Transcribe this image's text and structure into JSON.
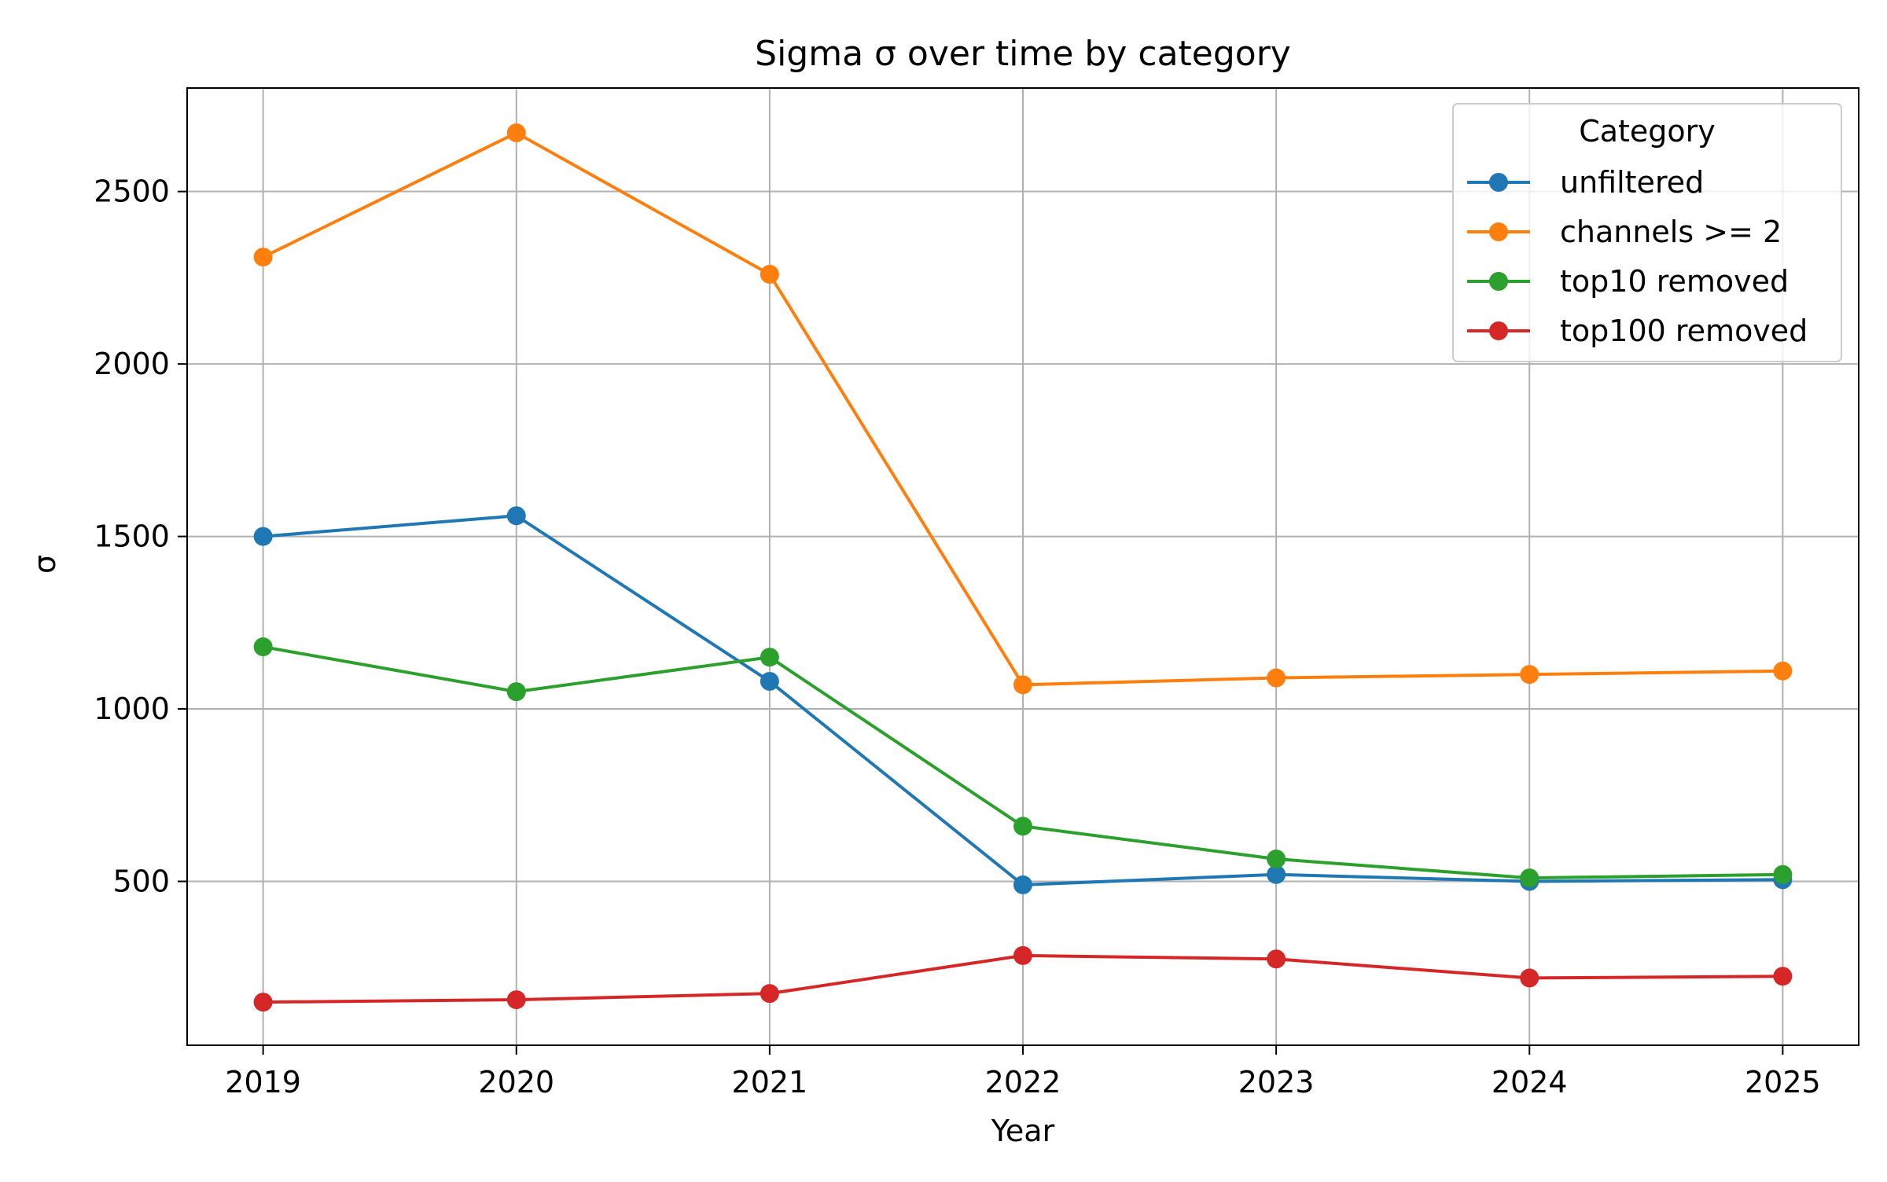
{
  "chart_data": {
    "type": "line",
    "title": "Sigma σ over time by category",
    "xlabel": "Year",
    "ylabel": "σ",
    "x": [
      2019,
      2020,
      2021,
      2022,
      2023,
      2024,
      2025
    ],
    "x_tick_labels": [
      "2019",
      "2020",
      "2021",
      "2022",
      "2023",
      "2024",
      "2025"
    ],
    "y_ticks": [
      500,
      1000,
      1500,
      2000,
      2500
    ],
    "y_tick_labels": [
      "500",
      "1000",
      "1500",
      "2000",
      "2500"
    ],
    "xlim": [
      2018.7,
      2025.3
    ],
    "ylim": [
      25,
      2800
    ],
    "grid": true,
    "markers": true,
    "legend": {
      "title": "Category",
      "placement": "top-right"
    },
    "series": [
      {
        "name": "unfiltered",
        "color": "#1f77b4",
        "values": [
          1500,
          1560,
          1080,
          490,
          520,
          500,
          505
        ]
      },
      {
        "name": "channels >= 2",
        "color": "#ff7f0e",
        "values": [
          2310,
          2670,
          2260,
          1070,
          1090,
          1100,
          1110
        ]
      },
      {
        "name": "top10 removed",
        "color": "#2ca02c",
        "values": [
          1180,
          1050,
          1150,
          660,
          565,
          510,
          520
        ]
      },
      {
        "name": "top100 removed",
        "color": "#d62728",
        "values": [
          150,
          157,
          175,
          285,
          275,
          220,
          225
        ]
      }
    ]
  }
}
